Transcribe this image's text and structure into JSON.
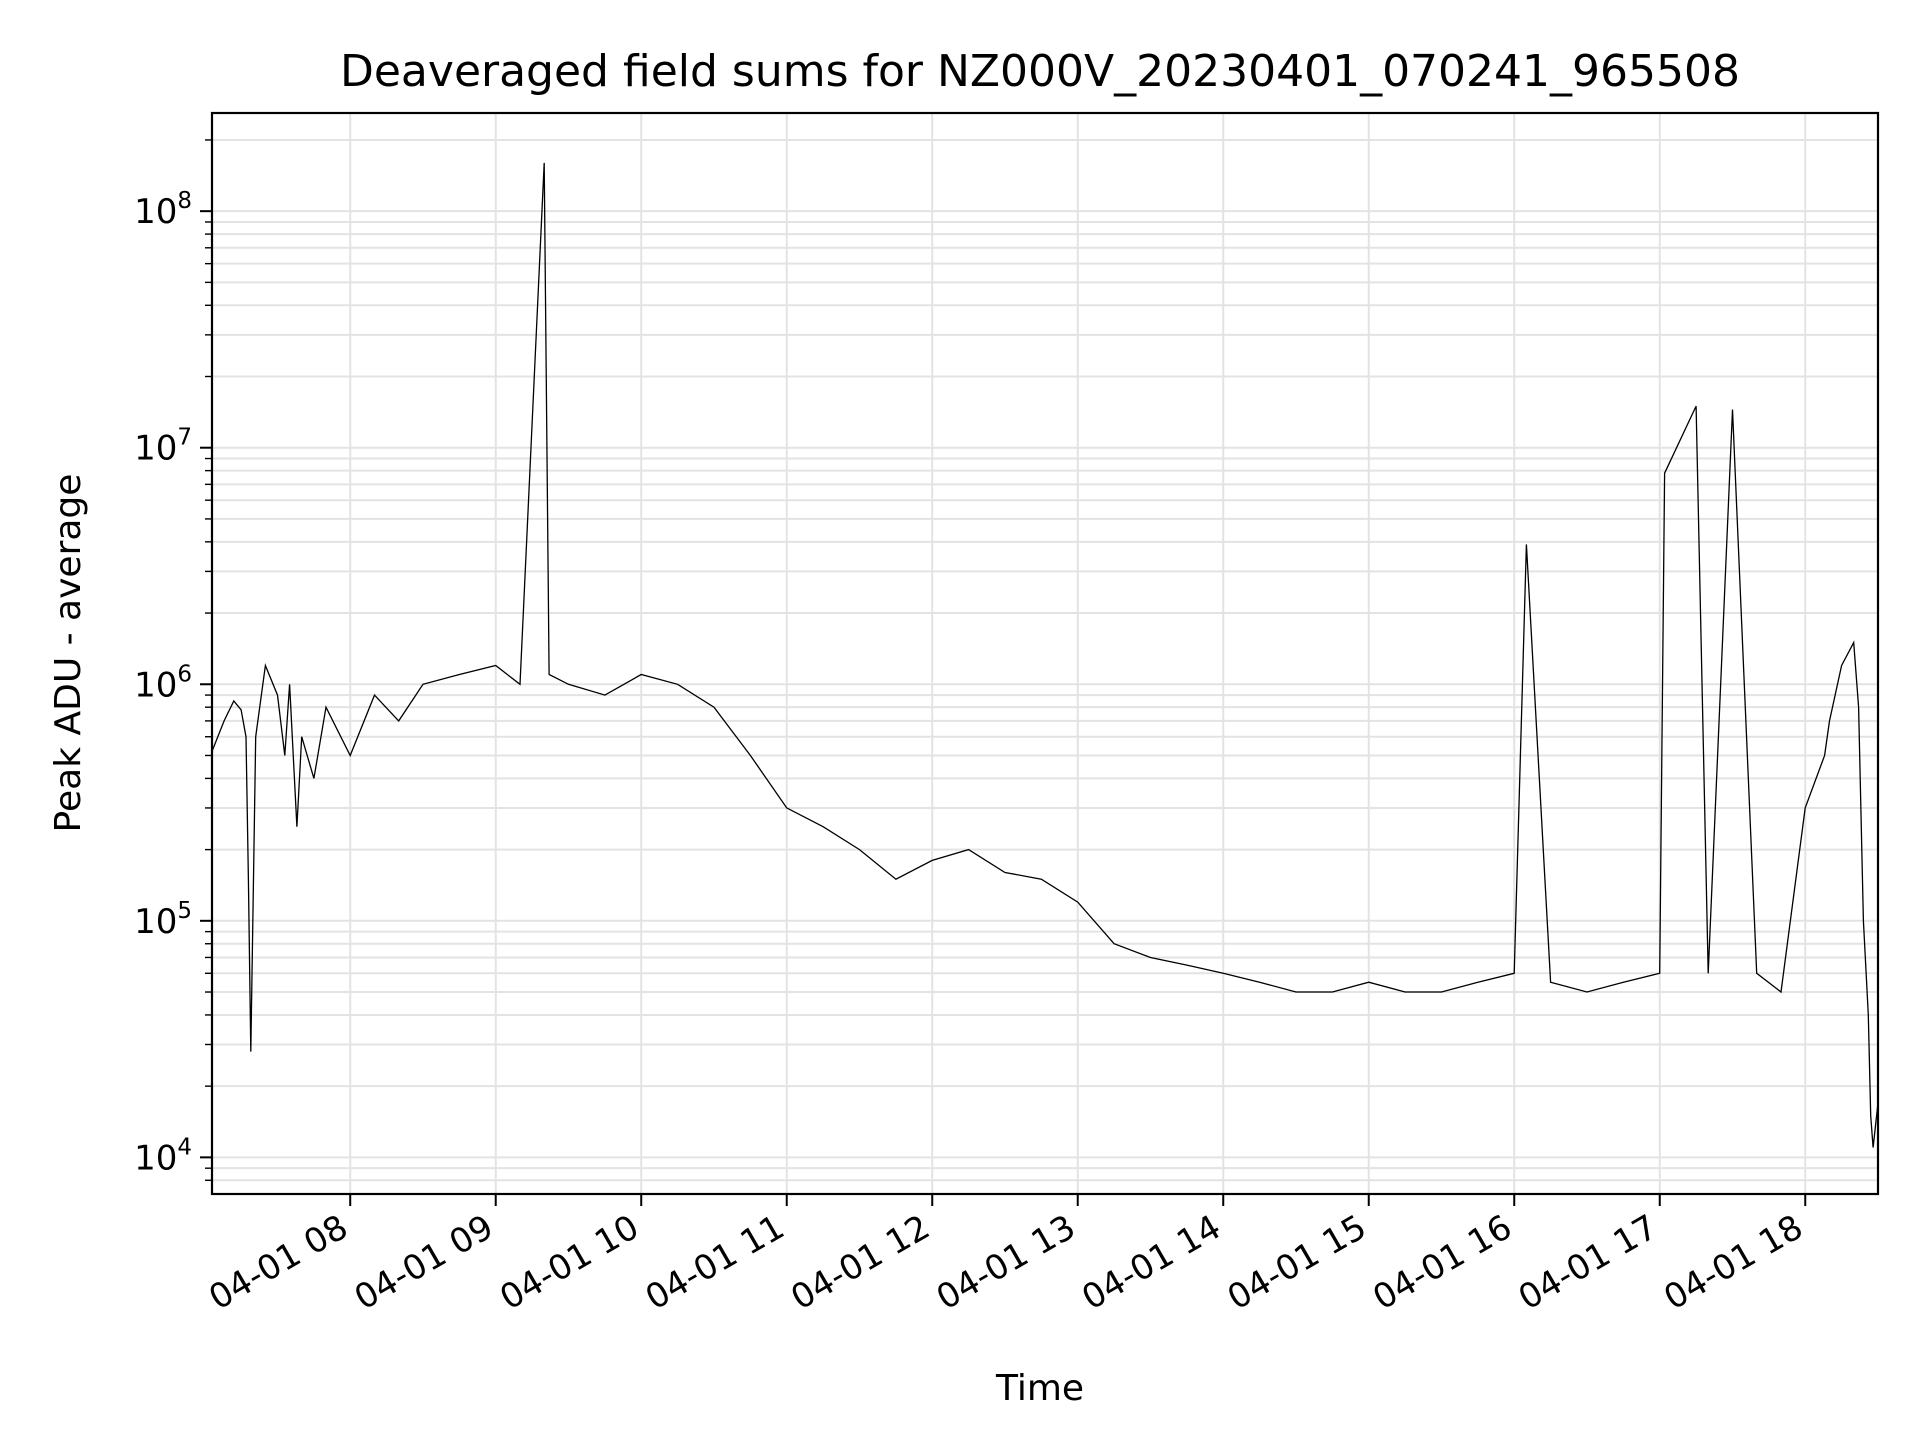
{
  "chart_data": {
    "type": "line",
    "title": "Deaveraged field sums for NZ000V_20230401_070241_965508",
    "xlabel": "Time",
    "ylabel": "Peak ADU - average",
    "y_scale": "log",
    "x_range": [
      "04-01 07:03",
      "04-01 18:30"
    ],
    "y_range": [
      7000,
      260000000
    ],
    "x_ticks": [
      "04-01 08",
      "04-01 09",
      "04-01 10",
      "04-01 11",
      "04-01 12",
      "04-01 13",
      "04-01 14",
      "04-01 15",
      "04-01 16",
      "04-01 17",
      "04-01 18"
    ],
    "y_ticks": [
      {
        "value": 10000,
        "base": "10",
        "exp": "4"
      },
      {
        "value": 100000,
        "base": "10",
        "exp": "5"
      },
      {
        "value": 1000000,
        "base": "10",
        "exp": "6"
      },
      {
        "value": 10000000,
        "base": "10",
        "exp": "7"
      },
      {
        "value": 100000000,
        "base": "10",
        "exp": "8"
      }
    ],
    "grid": true,
    "line_color": "#000000",
    "grid_color": "#e3e3e3",
    "series": [
      {
        "x": [
          "04-01 07:03",
          "04-01 07:08",
          "04-01 07:12",
          "04-01 07:15",
          "04-01 07:17",
          "04-01 07:18",
          "04-01 07:19",
          "04-01 07:21",
          "04-01 07:25",
          "04-01 07:30",
          "04-01 07:33",
          "04-01 07:35",
          "04-01 07:38",
          "04-01 07:40",
          "04-01 07:45",
          "04-01 07:50",
          "04-01 08:00",
          "04-01 08:10",
          "04-01 08:20",
          "04-01 08:30",
          "04-01 08:45",
          "04-01 09:00",
          "04-01 09:10",
          "04-01 09:20",
          "04-01 09:22",
          "04-01 09:30",
          "04-01 09:45",
          "04-01 10:00",
          "04-01 10:15",
          "04-01 10:30",
          "04-01 10:45",
          "04-01 11:00",
          "04-01 11:15",
          "04-01 11:30",
          "04-01 11:45",
          "04-01 12:00",
          "04-01 12:15",
          "04-01 12:30",
          "04-01 12:45",
          "04-01 13:00",
          "04-01 13:15",
          "04-01 13:30",
          "04-01 13:45",
          "04-01 14:00",
          "04-01 14:15",
          "04-01 14:30",
          "04-01 14:45",
          "04-01 15:00",
          "04-01 15:15",
          "04-01 15:30",
          "04-01 15:45",
          "04-01 16:00",
          "04-01 16:05",
          "04-01 16:15",
          "04-01 16:30",
          "04-01 16:45",
          "04-01 17:00",
          "04-01 17:02",
          "04-01 17:15",
          "04-01 17:20",
          "04-01 17:30",
          "04-01 17:40",
          "04-01 17:50",
          "04-01 18:00",
          "04-01 18:08",
          "04-01 18:10",
          "04-01 18:15",
          "04-01 18:20",
          "04-01 18:22",
          "04-01 18:24",
          "04-01 18:26",
          "04-01 18:27",
          "04-01 18:28",
          "04-01 18:30"
        ],
        "y": [
          520000,
          700000,
          850000,
          780000,
          600000,
          150000,
          28000,
          600000,
          1200000,
          900000,
          500000,
          1000000,
          250000,
          600000,
          400000,
          800000,
          500000,
          900000,
          700000,
          1000000,
          1100000,
          1200000,
          1000000,
          160000000,
          1100000,
          1000000,
          900000,
          1100000,
          1000000,
          800000,
          500000,
          300000,
          250000,
          200000,
          150000,
          180000,
          200000,
          160000,
          150000,
          120000,
          80000,
          70000,
          65000,
          60000,
          55000,
          50000,
          50000,
          55000,
          50000,
          50000,
          55000,
          60000,
          3900000,
          55000,
          50000,
          55000,
          60000,
          7800000,
          15000000,
          60000,
          14500000,
          60000,
          50000,
          300000,
          500000,
          700000,
          1200000,
          1500000,
          800000,
          100000,
          40000,
          15000,
          11000,
          17000
        ]
      }
    ]
  }
}
